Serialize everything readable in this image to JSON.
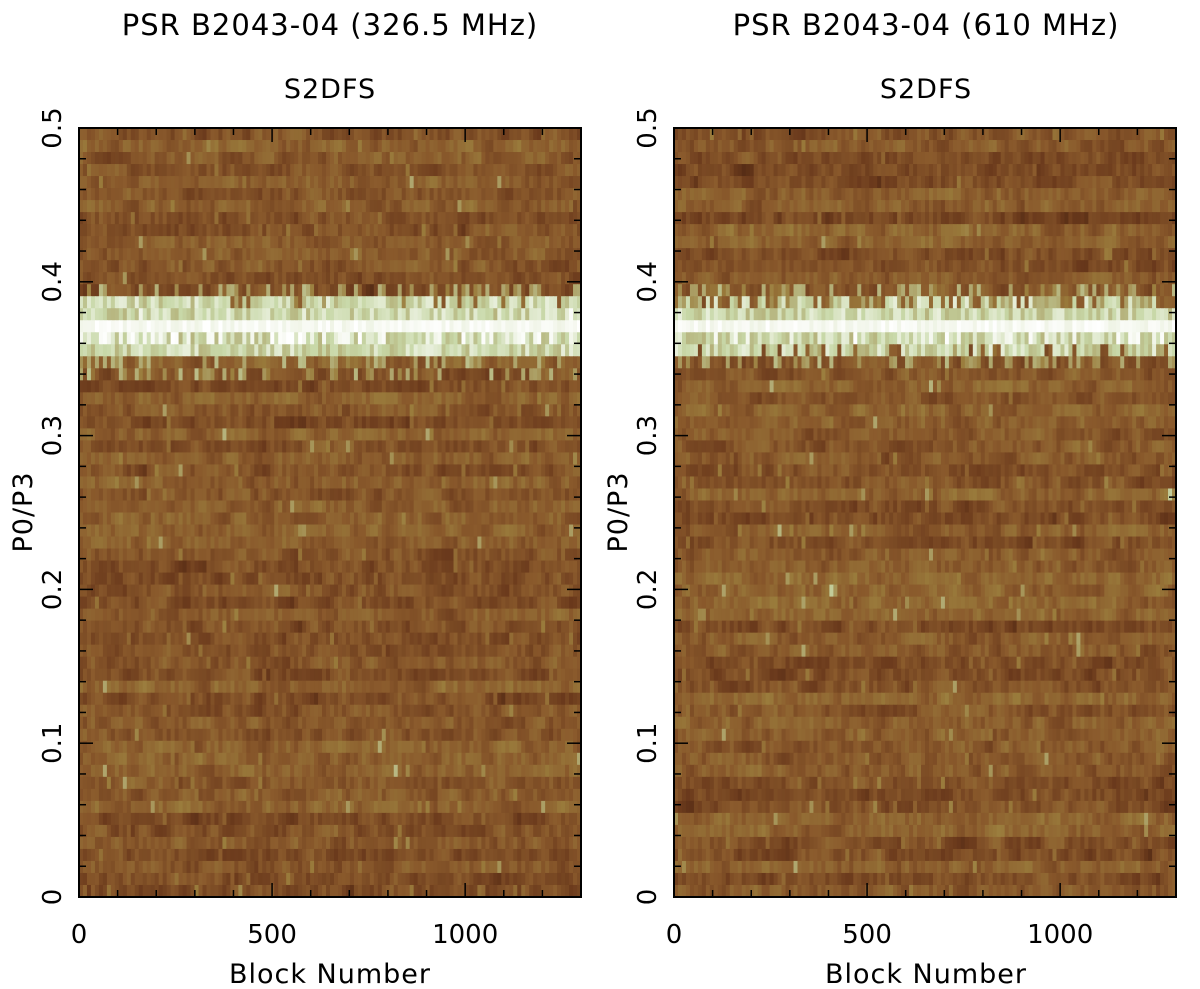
{
  "chart_data": [
    {
      "type": "heatmap",
      "title": "PSR B2043-04 (326.5 MHz)",
      "subtitle": "S2DFS",
      "xlabel": "Block Number",
      "ylabel": "P0/P3",
      "xlim": [
        0,
        1300
      ],
      "ylim": [
        0,
        0.5
      ],
      "x_ticks": [
        "0",
        "500",
        "1000"
      ],
      "y_ticks": [
        "0",
        "0.1",
        "0.2",
        "0.3",
        "0.4",
        "0.5"
      ],
      "colormap": [
        "#2b1208",
        "#6b3a1c",
        "#8a5a2c",
        "#9a7c3c",
        "#c8d8a8",
        "#ffffff"
      ],
      "feature": {
        "description": "bright drifting feature",
        "p0_p3_center": 0.37,
        "p0_p3_spread": 0.012
      }
    },
    {
      "type": "heatmap",
      "title": "PSR B2043-04 (610 MHz)",
      "subtitle": "S2DFS",
      "xlabel": "Block Number",
      "ylabel": "P0/P3",
      "xlim": [
        0,
        1300
      ],
      "ylim": [
        0,
        0.5
      ],
      "x_ticks": [
        "0",
        "500",
        "1000"
      ],
      "y_ticks": [
        "0",
        "0.1",
        "0.2",
        "0.3",
        "0.4",
        "0.5"
      ],
      "colormap": [
        "#2b1208",
        "#6b3a1c",
        "#8a5a2c",
        "#9a7c3c",
        "#c8d8a8",
        "#ffffff"
      ],
      "feature": {
        "description": "bright drifting feature",
        "p0_p3_center": 0.37,
        "p0_p3_spread": 0.01
      }
    }
  ]
}
